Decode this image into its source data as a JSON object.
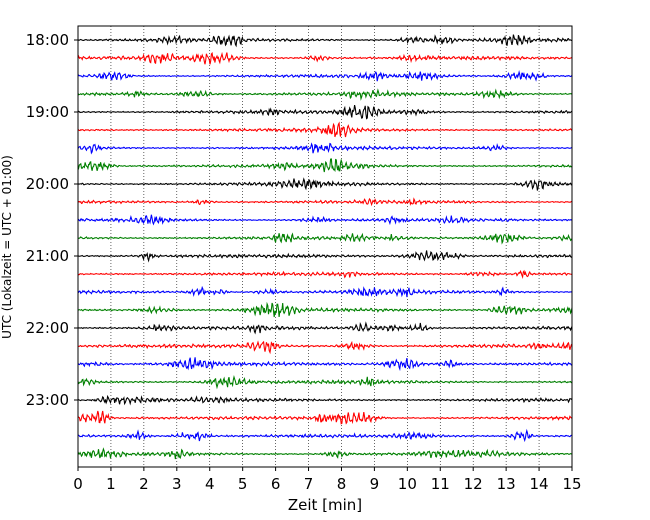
{
  "chart_data": {
    "type": "line",
    "title": "",
    "xlabel": "Zeit  [min]",
    "ylabel": "UTC (Lokalzeit = UTC + 01:00)",
    "xlim": [
      0,
      15
    ],
    "x_ticks": [
      0,
      1,
      2,
      3,
      4,
      5,
      6,
      7,
      8,
      9,
      10,
      11,
      12,
      13,
      14,
      15
    ],
    "x_tick_labels": [
      "0",
      "1",
      "2",
      "3",
      "4",
      "5",
      "6",
      "7",
      "8",
      "9",
      "10",
      "11",
      "12",
      "13",
      "14",
      "15"
    ],
    "y_tick_labels": [
      "18:00",
      "19:00",
      "20:00",
      "21:00",
      "22:00",
      "23:00"
    ],
    "traces_per_hour": 4,
    "trace_minutes": 15,
    "trace_colors": [
      "#000000",
      "#ff0000",
      "#0000ff",
      "#008000"
    ],
    "vertical_grid": true,
    "grid_style": "dotted",
    "series": [
      {
        "start": "18:00",
        "color": "#000000"
      },
      {
        "start": "18:15",
        "color": "#ff0000"
      },
      {
        "start": "18:30",
        "color": "#0000ff"
      },
      {
        "start": "18:45",
        "color": "#008000"
      },
      {
        "start": "19:00",
        "color": "#000000"
      },
      {
        "start": "19:15",
        "color": "#ff0000"
      },
      {
        "start": "19:30",
        "color": "#0000ff"
      },
      {
        "start": "19:45",
        "color": "#008000"
      },
      {
        "start": "20:00",
        "color": "#000000"
      },
      {
        "start": "20:15",
        "color": "#ff0000"
      },
      {
        "start": "20:30",
        "color": "#0000ff"
      },
      {
        "start": "20:45",
        "color": "#008000"
      },
      {
        "start": "21:00",
        "color": "#000000"
      },
      {
        "start": "21:15",
        "color": "#ff0000"
      },
      {
        "start": "21:30",
        "color": "#0000ff"
      },
      {
        "start": "21:45",
        "color": "#008000"
      },
      {
        "start": "22:00",
        "color": "#000000"
      },
      {
        "start": "22:15",
        "color": "#ff0000"
      },
      {
        "start": "22:30",
        "color": "#0000ff"
      },
      {
        "start": "22:45",
        "color": "#008000"
      },
      {
        "start": "23:00",
        "color": "#000000"
      },
      {
        "start": "23:15",
        "color": "#ff0000"
      },
      {
        "start": "23:30",
        "color": "#0000ff"
      },
      {
        "start": "23:45",
        "color": "#008000"
      }
    ]
  }
}
